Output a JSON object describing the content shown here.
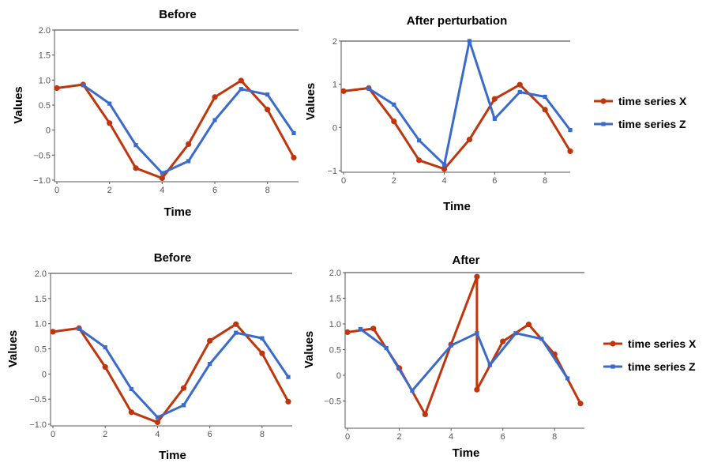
{
  "colors": {
    "series_x": "#c0350b",
    "series_z": "#3a6bcb",
    "axis": "#555555",
    "topline": "#333333"
  },
  "legend": {
    "series_x": "time series X",
    "series_z": "time series Z"
  },
  "chart_data": [
    {
      "type": "line",
      "title": "Before",
      "xlabel": "Time",
      "ylabel": "Values",
      "xlim": [
        0,
        9
      ],
      "ylim": [
        -1.0,
        2.0
      ],
      "xticks": [
        0,
        2,
        4,
        6,
        8
      ],
      "yticks": [
        -1.0,
        -0.5,
        0,
        0.5,
        1.0,
        1.5,
        2.0
      ],
      "ytick_labels": [
        "−1.0",
        "−0.5",
        "0",
        "0.5",
        "1.0",
        "1.5",
        "2.0"
      ],
      "series": [
        {
          "name": "time series X",
          "color": "#c0350b",
          "marker": "circle",
          "x": [
            0,
            1,
            2,
            3,
            4,
            5,
            6,
            7,
            8,
            9
          ],
          "y": [
            0.84,
            0.91,
            0.14,
            -0.76,
            -0.96,
            -0.28,
            0.66,
            0.99,
            0.41,
            -0.55
          ]
        },
        {
          "name": "time series Z",
          "color": "#3a6bcb",
          "marker": "square",
          "x": [
            1,
            2,
            3,
            4,
            5,
            6,
            7,
            8,
            9
          ],
          "y": [
            0.9,
            0.53,
            -0.3,
            -0.86,
            -0.62,
            0.2,
            0.82,
            0.71,
            -0.06
          ]
        }
      ]
    },
    {
      "type": "line",
      "title": "After perturbation",
      "xlabel": "Time",
      "ylabel": "Values",
      "xlim": [
        0,
        9
      ],
      "ylim": [
        -1.0,
        2.2
      ],
      "xticks": [
        0,
        2,
        4,
        6,
        8
      ],
      "yticks": [
        -1,
        0,
        1,
        2
      ],
      "ytick_labels": [
        "−1",
        "0",
        "1",
        "2"
      ],
      "series": [
        {
          "name": "time series X",
          "color": "#c0350b",
          "marker": "circle",
          "x": [
            0,
            1,
            2,
            3,
            4,
            5,
            6,
            7,
            8,
            9
          ],
          "y": [
            0.84,
            0.91,
            0.14,
            -0.76,
            -0.96,
            -0.28,
            0.66,
            0.99,
            0.41,
            -0.55
          ]
        },
        {
          "name": "time series Z",
          "color": "#3a6bcb",
          "marker": "square",
          "x": [
            1,
            2,
            3,
            4,
            5,
            6,
            7,
            8,
            9
          ],
          "y": [
            0.9,
            0.53,
            -0.3,
            -0.86,
            2.0,
            0.2,
            0.82,
            0.71,
            -0.06
          ]
        }
      ]
    },
    {
      "type": "line",
      "title": "Before",
      "xlabel": "Time",
      "ylabel": "Values",
      "xlim": [
        0,
        9
      ],
      "ylim": [
        -1.0,
        2.0
      ],
      "xticks": [
        0,
        2,
        4,
        6,
        8
      ],
      "yticks": [
        -1.0,
        -0.5,
        0,
        0.5,
        1.0,
        1.5,
        2.0
      ],
      "ytick_labels": [
        "−1.0",
        "−0.5",
        "0",
        "0.5",
        "1.0",
        "1.5",
        "2.0"
      ],
      "series": [
        {
          "name": "time series X",
          "color": "#c0350b",
          "marker": "circle",
          "x": [
            0,
            1,
            2,
            3,
            4,
            5,
            6,
            7,
            8,
            9
          ],
          "y": [
            0.84,
            0.91,
            0.14,
            -0.76,
            -0.96,
            -0.28,
            0.66,
            0.99,
            0.41,
            -0.55
          ]
        },
        {
          "name": "time series Z",
          "color": "#3a6bcb",
          "marker": "square",
          "x": [
            1,
            2,
            3,
            4,
            5,
            6,
            7,
            8,
            9
          ],
          "y": [
            0.9,
            0.53,
            -0.3,
            -0.86,
            -0.62,
            0.2,
            0.82,
            0.71,
            -0.06
          ]
        }
      ]
    },
    {
      "type": "line",
      "title": "After",
      "xlabel": "Time",
      "ylabel": "Values",
      "xlim": [
        0,
        9
      ],
      "ylim": [
        -1.0,
        2.0
      ],
      "xticks": [
        0,
        2,
        4,
        6,
        8
      ],
      "yticks": [
        -0.5,
        0,
        0.5,
        1.0,
        1.5,
        2.0
      ],
      "ytick_labels": [
        "−0.5",
        "0",
        "0.5",
        "1.0",
        "1.5",
        "2.0"
      ],
      "series": [
        {
          "name": "time series X",
          "color": "#c0350b",
          "marker": "circle",
          "x": [
            0,
            1,
            2,
            3,
            4,
            5,
            5,
            6,
            7,
            8,
            9
          ],
          "y": [
            0.84,
            0.91,
            0.14,
            -0.76,
            0.6,
            1.92,
            -0.28,
            0.66,
            0.99,
            0.41,
            -0.55
          ]
        },
        {
          "name": "time series Z",
          "color": "#3a6bcb",
          "marker": "square",
          "x": [
            0.5,
            1.5,
            2.5,
            4,
            5,
            5.5,
            6.5,
            7.5,
            8.5
          ],
          "y": [
            0.9,
            0.53,
            -0.3,
            0.58,
            0.82,
            0.2,
            0.82,
            0.71,
            -0.06
          ]
        }
      ]
    }
  ]
}
